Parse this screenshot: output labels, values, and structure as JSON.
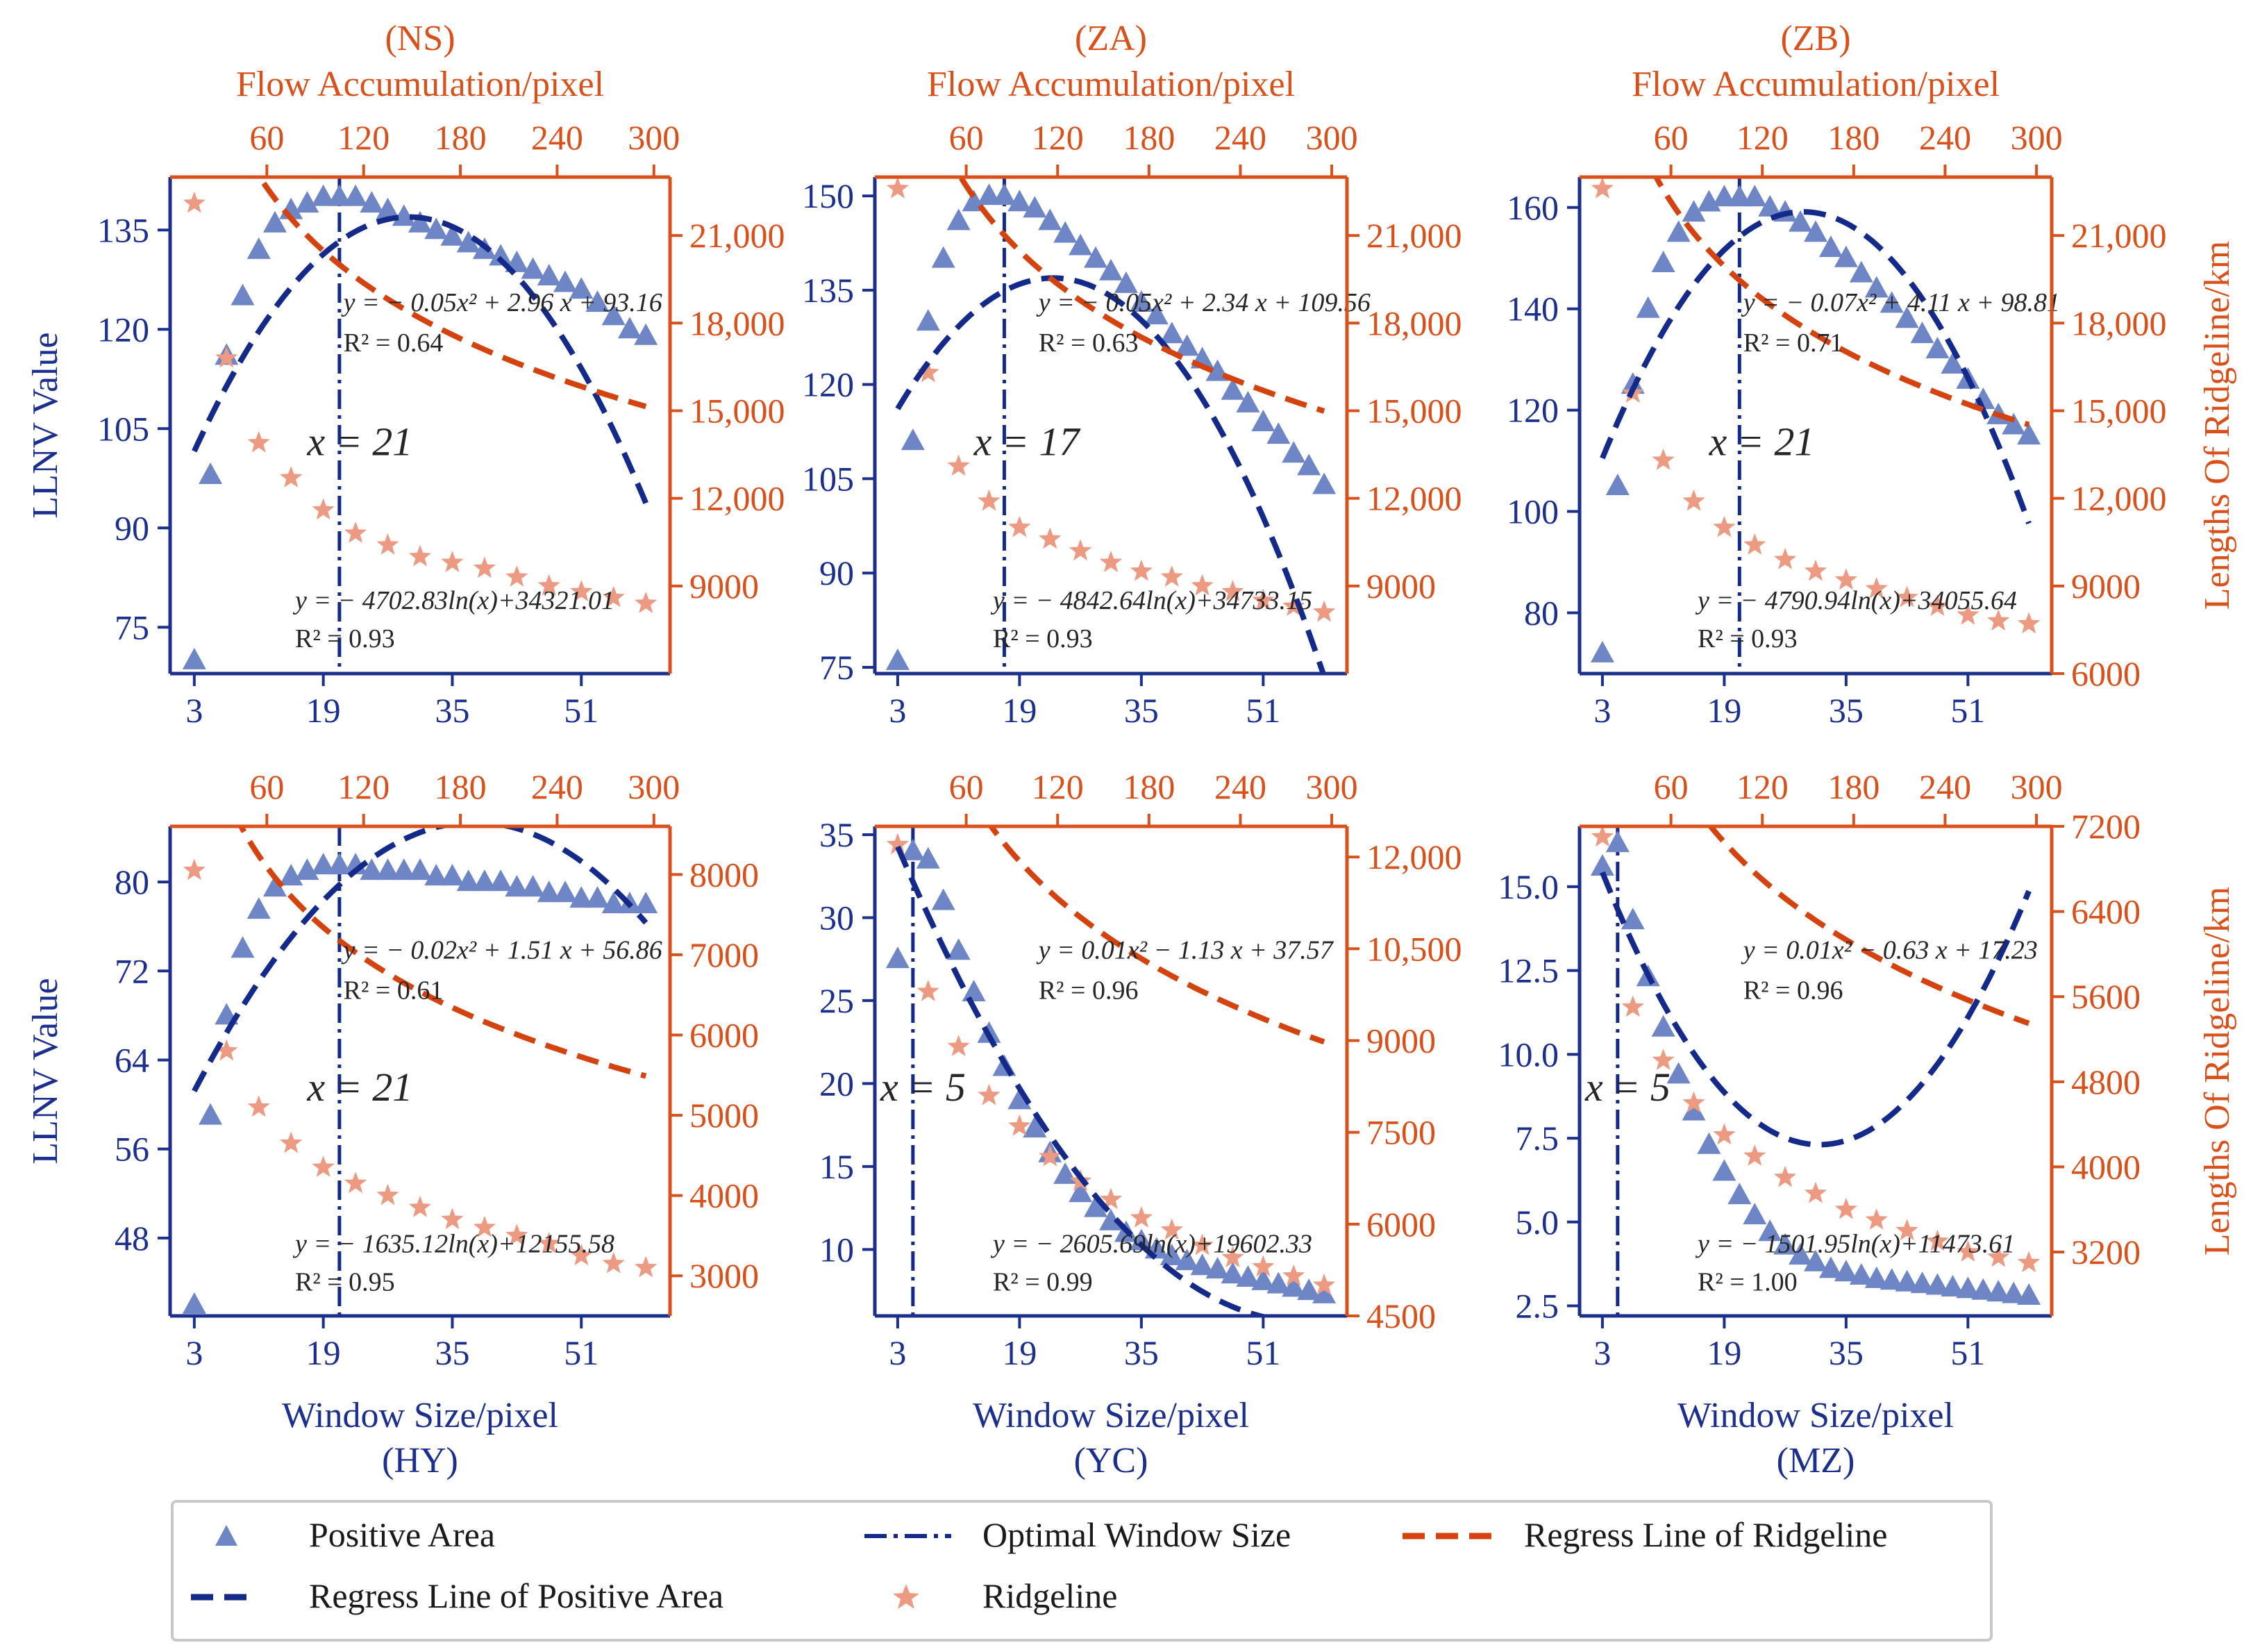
{
  "colors": {
    "blue": "#1b2f8f",
    "orange": "#d9501a",
    "triangle": "#6f86c6",
    "star": "#ec9a82",
    "regress_blue": "#142a8a",
    "regress_orange": "#d4420e"
  },
  "shared_axes": {
    "top_label": "Flow Accumulation/pixel",
    "bottom_label": "Window Size/pixel",
    "left_label": "LLNV Value",
    "right_label": "Lengths Of Ridgeline/km",
    "x_ticks": [
      "3",
      "19",
      "35",
      "51"
    ],
    "top_ticks": [
      "60",
      "120",
      "180",
      "240",
      "300"
    ]
  },
  "legend": {
    "positive_area": "Positive Area",
    "regress_positive": "Regress Line of Positive Area",
    "optimal_window": "Optimal Window Size",
    "ridgeline": "Ridgeline",
    "regress_ridgeline": "Regress Line of Ridgeline"
  },
  "chart_data": [
    {
      "type": "scatter",
      "title": "(NS)",
      "optimal_label": "x = 21",
      "optimal_x": 21,
      "xlim": [
        0,
        62
      ],
      "left_ylim": [
        68,
        143
      ],
      "left_ticks": [
        "75",
        "90",
        "105",
        "120",
        "135"
      ],
      "left_tick_values": [
        75,
        90,
        105,
        120,
        135
      ],
      "right_ylim": [
        6000,
        23000
      ],
      "right_ticks": [
        "9000",
        "12,000",
        "15,000",
        "18,000",
        "21,000"
      ],
      "right_tick_values": [
        9000,
        12000,
        15000,
        18000,
        21000
      ],
      "positive_area": {
        "x": [
          3,
          5,
          7,
          9,
          11,
          13,
          15,
          17,
          19,
          21,
          23,
          25,
          27,
          29,
          31,
          33,
          35,
          37,
          39,
          41,
          43,
          45,
          47,
          49,
          51,
          53,
          55,
          57,
          59
        ],
        "y": [
          70,
          98,
          116,
          125,
          132,
          136,
          138,
          139,
          140,
          140,
          140,
          139,
          138,
          137,
          136,
          135,
          134,
          133,
          132,
          131,
          130,
          129,
          128,
          127,
          126,
          124,
          122,
          120,
          119
        ]
      },
      "positive_fit": {
        "a": -0.05,
        "b": 2.96,
        "c": 93.16,
        "eq": "y = − 0.05x² + 2.96 x + 93.16",
        "r2": "R² = 0.64"
      },
      "ridgeline": {
        "x": [
          3,
          7,
          11,
          15,
          19,
          23,
          27,
          31,
          35,
          39,
          43,
          47,
          51,
          55,
          59
        ],
        "y": [
          22100,
          16800,
          13900,
          12700,
          11600,
          10800,
          10400,
          10000,
          9800,
          9600,
          9300,
          9000,
          8800,
          8600,
          8400
        ]
      },
      "ridge_fit": {
        "a": -4702.83,
        "b": 34321.01,
        "eq": "y = − 4702.83ln(x)+34321.01",
        "r2": "R² = 0.93"
      }
    },
    {
      "type": "scatter",
      "title": "(ZA)",
      "optimal_label": "x = 17",
      "optimal_x": 17,
      "xlim": [
        0,
        62
      ],
      "left_ylim": [
        74,
        153
      ],
      "left_ticks": [
        "75",
        "90",
        "105",
        "120",
        "135",
        "150"
      ],
      "left_tick_values": [
        75,
        90,
        105,
        120,
        135,
        150
      ],
      "right_ylim": [
        6000,
        23000
      ],
      "right_ticks": [
        "9000",
        "12,000",
        "15,000",
        "18,000",
        "21,000"
      ],
      "right_tick_values": [
        9000,
        12000,
        15000,
        18000,
        21000
      ],
      "positive_area": {
        "x": [
          3,
          5,
          7,
          9,
          11,
          13,
          15,
          17,
          19,
          21,
          23,
          25,
          27,
          29,
          31,
          33,
          35,
          37,
          39,
          41,
          43,
          45,
          47,
          49,
          51,
          53,
          55,
          57,
          59
        ],
        "y": [
          76,
          111,
          130,
          140,
          146,
          149,
          150,
          150,
          149,
          148,
          146,
          144,
          142,
          140,
          138,
          136,
          133,
          131,
          128,
          126,
          124,
          122,
          119,
          117,
          114,
          112,
          109,
          107,
          104
        ]
      },
      "positive_fit": {
        "a": -0.05,
        "b": 2.34,
        "c": 109.56,
        "eq": "y = − 0.05x² + 2.34 x + 109.56",
        "r2": "R² = 0.63"
      },
      "ridgeline": {
        "x": [
          3,
          7,
          11,
          15,
          19,
          23,
          27,
          31,
          35,
          39,
          43,
          47,
          51,
          55,
          59
        ],
        "y": [
          22600,
          16300,
          13100,
          11900,
          11000,
          10600,
          10200,
          9800,
          9500,
          9300,
          9000,
          8800,
          8500,
          8300,
          8100
        ]
      },
      "ridge_fit": {
        "a": -4842.64,
        "b": 34733.15,
        "eq": "y = − 4842.64ln(x)+34733.15",
        "r2": "R² = 0.93"
      }
    },
    {
      "type": "scatter",
      "title": "(ZB)",
      "optimal_label": "x = 21",
      "optimal_x": 21,
      "xlim": [
        0,
        62
      ],
      "left_ylim": [
        68,
        166
      ],
      "left_ticks": [
        "80",
        "100",
        "120",
        "140",
        "160"
      ],
      "left_tick_values": [
        80,
        100,
        120,
        140,
        160
      ],
      "right_ylim": [
        6000,
        23000
      ],
      "right_ticks": [
        "6000",
        "9000",
        "12,000",
        "15,000",
        "18,000",
        "21,000"
      ],
      "right_tick_values": [
        6000,
        9000,
        12000,
        15000,
        18000,
        21000
      ],
      "positive_area": {
        "x": [
          3,
          5,
          7,
          9,
          11,
          13,
          15,
          17,
          19,
          21,
          23,
          25,
          27,
          29,
          31,
          33,
          35,
          37,
          39,
          41,
          43,
          45,
          47,
          49,
          51,
          53,
          55,
          57,
          59
        ],
        "y": [
          72,
          105,
          125,
          140,
          149,
          155,
          159,
          161,
          162,
          162,
          162,
          160,
          159,
          157,
          155,
          152,
          150,
          147,
          144,
          141,
          138,
          135,
          132,
          129,
          126,
          122,
          119,
          117,
          115
        ]
      },
      "positive_fit": {
        "a": -0.07,
        "b": 4.11,
        "c": 98.81,
        "eq": "y = − 0.07x² + 4.11 x + 98.81",
        "r2": "R² = 0.71"
      },
      "ridgeline": {
        "x": [
          3,
          7,
          11,
          15,
          19,
          23,
          27,
          31,
          35,
          39,
          43,
          47,
          51,
          55,
          59
        ],
        "y": [
          22600,
          15600,
          13300,
          11900,
          11000,
          10400,
          9900,
          9500,
          9200,
          8900,
          8600,
          8300,
          8000,
          7800,
          7700
        ]
      },
      "ridge_fit": {
        "a": -4790.94,
        "b": 34055.64,
        "eq": "y = − 4790.94ln(x)+34055.64",
        "r2": "R² = 0.93"
      }
    },
    {
      "type": "scatter",
      "title": "(HY)",
      "optimal_label": "x = 21",
      "optimal_x": 21,
      "xlim": [
        0,
        62
      ],
      "left_ylim": [
        41,
        85
      ],
      "left_ticks": [
        "48",
        "56",
        "64",
        "72",
        "80"
      ],
      "left_tick_values": [
        48,
        56,
        64,
        72,
        80
      ],
      "right_ylim": [
        2500,
        8600
      ],
      "right_ticks": [
        "3000",
        "4000",
        "5000",
        "6000",
        "7000",
        "8000"
      ],
      "right_tick_values": [
        3000,
        4000,
        5000,
        6000,
        7000,
        8000
      ],
      "positive_area": {
        "x": [
          3,
          5,
          7,
          9,
          11,
          13,
          15,
          17,
          19,
          21,
          23,
          25,
          27,
          29,
          31,
          33,
          35,
          37,
          39,
          41,
          43,
          45,
          47,
          49,
          51,
          53,
          55,
          57,
          59
        ],
        "y": [
          42,
          59,
          68,
          74,
          77.5,
          79.5,
          80.5,
          81,
          81.5,
          81.5,
          81.5,
          81,
          81,
          81,
          81,
          80.5,
          80.5,
          80,
          80,
          80,
          79.5,
          79.5,
          79,
          79,
          78.5,
          78.5,
          78,
          78,
          78
        ]
      },
      "positive_fit": {
        "a": -0.02,
        "b": 1.51,
        "c": 56.86,
        "eq": "y = − 0.02x² + 1.51 x + 56.86",
        "r2": "R² = 0.61"
      },
      "ridgeline": {
        "x": [
          3,
          7,
          11,
          15,
          19,
          23,
          27,
          31,
          35,
          39,
          43,
          47,
          51,
          55,
          59
        ],
        "y": [
          8050,
          5800,
          5100,
          4650,
          4350,
          4150,
          4000,
          3850,
          3700,
          3600,
          3500,
          3400,
          3250,
          3150,
          3100
        ]
      },
      "ridge_fit": {
        "a": -1635.12,
        "b": 12155.58,
        "eq": "y = − 1635.12ln(x)+12155.58",
        "r2": "R² = 0.95"
      }
    },
    {
      "type": "scatter",
      "title": "(YC)",
      "optimal_label": "x = 5",
      "optimal_x": 5,
      "xlim": [
        0,
        62
      ],
      "left_ylim": [
        6,
        35.5
      ],
      "left_ticks": [
        "10",
        "15",
        "20",
        "25",
        "30",
        "35"
      ],
      "left_tick_values": [
        10,
        15,
        20,
        25,
        30,
        35
      ],
      "right_ylim": [
        4500,
        12500
      ],
      "right_ticks": [
        "4500",
        "6000",
        "7500",
        "9000",
        "10,500",
        "12,000"
      ],
      "right_tick_values": [
        4500,
        6000,
        7500,
        9000,
        10500,
        12000
      ],
      "positive_area": {
        "x": [
          3,
          5,
          7,
          9,
          11,
          13,
          15,
          17,
          19,
          21,
          23,
          25,
          27,
          29,
          31,
          33,
          35,
          37,
          39,
          41,
          43,
          45,
          47,
          49,
          51,
          53,
          55,
          57,
          59
        ],
        "y": [
          27.5,
          34,
          33.5,
          31,
          28,
          25.5,
          23,
          21,
          19,
          17.3,
          15.8,
          14.5,
          13.4,
          12.5,
          11.7,
          11,
          10.5,
          10,
          9.6,
          9.3,
          9,
          8.8,
          8.5,
          8.3,
          8.1,
          7.9,
          7.7,
          7.5,
          7.3
        ]
      },
      "positive_fit": {
        "a": 0.01,
        "b": -1.13,
        "c": 37.57,
        "eq": "y = 0.01x² − 1.13 x + 37.57",
        "r2": "R² = 0.96"
      },
      "ridgeline": {
        "x": [
          3,
          7,
          11,
          15,
          19,
          23,
          27,
          31,
          35,
          39,
          43,
          47,
          51,
          55,
          59
        ],
        "y": [
          12200,
          9800,
          8900,
          8100,
          7600,
          7100,
          6700,
          6400,
          6100,
          5900,
          5650,
          5450,
          5300,
          5150,
          5000
        ]
      },
      "ridge_fit": {
        "a": -2605.69,
        "b": 19602.33,
        "eq": "y = − 2605.69ln(x)+19602.33",
        "r2": "R² = 0.99"
      }
    },
    {
      "type": "scatter",
      "title": "(MZ)",
      "optimal_label": "x = 5",
      "optimal_x": 5,
      "xlim": [
        0,
        62
      ],
      "left_ylim": [
        2.2,
        16.8
      ],
      "left_ticks": [
        "2.5",
        "5.0",
        "7.5",
        "10.0",
        "12.5",
        "15.0"
      ],
      "left_tick_values": [
        2.5,
        5,
        7.5,
        10,
        12.5,
        15
      ],
      "right_ylim": [
        2600,
        7200
      ],
      "right_ticks": [
        "3200",
        "4000",
        "4800",
        "5600",
        "6400",
        "7200"
      ],
      "right_tick_values": [
        3200,
        4000,
        4800,
        5600,
        6400,
        7200
      ],
      "positive_area": {
        "x": [
          3,
          5,
          7,
          9,
          11,
          13,
          15,
          17,
          19,
          21,
          23,
          25,
          27,
          29,
          31,
          33,
          35,
          37,
          39,
          41,
          43,
          45,
          47,
          49,
          51,
          53,
          55,
          57,
          59
        ],
        "y": [
          15.6,
          16.3,
          14,
          12.3,
          10.8,
          9.4,
          8.3,
          7.3,
          6.5,
          5.8,
          5.2,
          4.7,
          4.3,
          4,
          3.8,
          3.6,
          3.5,
          3.4,
          3.3,
          3.25,
          3.2,
          3.15,
          3.1,
          3.05,
          3,
          2.95,
          2.9,
          2.85,
          2.8
        ]
      },
      "positive_fit": {
        "a": 0.01,
        "b": -0.63,
        "c": 17.23,
        "eq": "y = 0.01x² − 0.63 x + 17.23",
        "r2": "R² = 0.96"
      },
      "ridgeline": {
        "x": [
          3,
          7,
          11,
          15,
          19,
          23,
          27,
          31,
          35,
          39,
          43,
          47,
          51,
          55,
          59
        ],
        "y": [
          7100,
          5500,
          5000,
          4600,
          4300,
          4100,
          3900,
          3750,
          3600,
          3500,
          3400,
          3300,
          3200,
          3150,
          3100
        ]
      },
      "ridge_fit": {
        "a": -1501.95,
        "b": 11473.61,
        "eq": "y = − 1501.95ln(x)+11473.61",
        "r2": "R² = 1.00"
      }
    }
  ]
}
